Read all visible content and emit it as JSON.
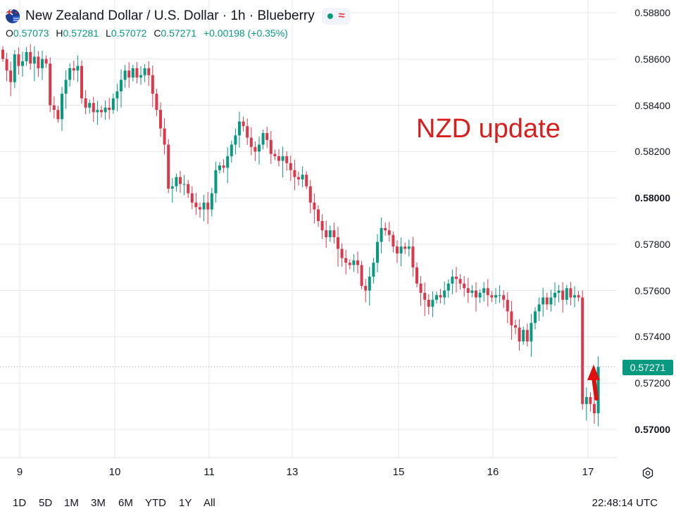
{
  "header": {
    "title": "New Zealand Dollar / U.S. Dollar · 1h · Blueberry",
    "ohlc": [
      {
        "key": "O",
        "value": "0.57073"
      },
      {
        "key": "H",
        "value": "0.57281"
      },
      {
        "key": "L",
        "value": "0.57072"
      },
      {
        "key": "C",
        "value": "0.57271"
      }
    ],
    "change": "+0.00198 (+0.35%)",
    "flag_icon": "nzd-usd-flag-icon",
    "market_status_icon": "market-open-dot-icon",
    "indicator_icon": "wave-icon"
  },
  "annotation": "NZD update",
  "current_price": "0.57271",
  "time_ranges": [
    "1D",
    "5D",
    "1M",
    "3M",
    "6M",
    "YTD",
    "1Y",
    "All"
  ],
  "clock": "22:48:14 UTC",
  "colors": {
    "up": "#089981",
    "down": "#d9394b",
    "annotation": "#d81f1f",
    "arrow": "#e01010",
    "grid": "#e6e8ec"
  },
  "chart_data": {
    "type": "candlestick",
    "timeframe": "1h",
    "y_ticks": [
      "0.58800",
      "0.58600",
      "0.58400",
      "0.58200",
      "0.58000",
      "0.57800",
      "0.57600",
      "0.57400",
      "0.57200",
      "0.57000"
    ],
    "x_ticks": [
      "9",
      "10",
      "11",
      "13",
      "15",
      "16",
      "17"
    ],
    "ylim": [
      0.5687,
      0.5883
    ],
    "close_path": [
      0.586,
      0.5855,
      0.585,
      0.5862,
      0.5857,
      0.5859,
      0.5863,
      0.5858,
      0.5861,
      0.5856,
      0.586,
      0.5858,
      0.584,
      0.5838,
      0.5834,
      0.5845,
      0.5851,
      0.5856,
      0.5855,
      0.5857,
      0.5843,
      0.5839,
      0.5841,
      0.5837,
      0.5838,
      0.5837,
      0.5839,
      0.5838,
      0.5843,
      0.5846,
      0.5851,
      0.5855,
      0.5852,
      0.5856,
      0.5852,
      0.5853,
      0.5856,
      0.5853,
      0.5845,
      0.5838,
      0.583,
      0.5823,
      0.5804,
      0.5805,
      0.5809,
      0.5806,
      0.5806,
      0.5802,
      0.5798,
      0.5796,
      0.5795,
      0.5798,
      0.5795,
      0.5802,
      0.5812,
      0.5814,
      0.5813,
      0.5818,
      0.5823,
      0.5827,
      0.5833,
      0.5831,
      0.5826,
      0.5822,
      0.582,
      0.5823,
      0.5828,
      0.5825,
      0.5819,
      0.5818,
      0.5816,
      0.5818,
      0.5815,
      0.5812,
      0.5809,
      0.5808,
      0.581,
      0.5805,
      0.5798,
      0.5795,
      0.579,
      0.5786,
      0.5783,
      0.5786,
      0.5783,
      0.5778,
      0.5774,
      0.5772,
      0.5771,
      0.5773,
      0.5771,
      0.5762,
      0.576,
      0.5766,
      0.5772,
      0.5781,
      0.5787,
      0.5786,
      0.5784,
      0.5779,
      0.5776,
      0.5779,
      0.5778,
      0.5779,
      0.577,
      0.5763,
      0.5759,
      0.5756,
      0.5753,
      0.5756,
      0.5758,
      0.5757,
      0.576,
      0.5763,
      0.5766,
      0.5765,
      0.5763,
      0.5761,
      0.5759,
      0.576,
      0.5757,
      0.5759,
      0.5761,
      0.5758,
      0.5757,
      0.5758,
      0.5758,
      0.5756,
      0.5751,
      0.5745,
      0.5744,
      0.5738,
      0.5743,
      0.5738,
      0.5746,
      0.5751,
      0.5754,
      0.5757,
      0.5754,
      0.5757,
      0.5759,
      0.576,
      0.5756,
      0.5761,
      0.5757,
      0.5758,
      0.5757,
      0.5711,
      0.5714,
      0.5711,
      0.5707,
      0.5727
    ],
    "grid": true,
    "current_price": 0.57271,
    "last_bar_change": 0.00198
  }
}
